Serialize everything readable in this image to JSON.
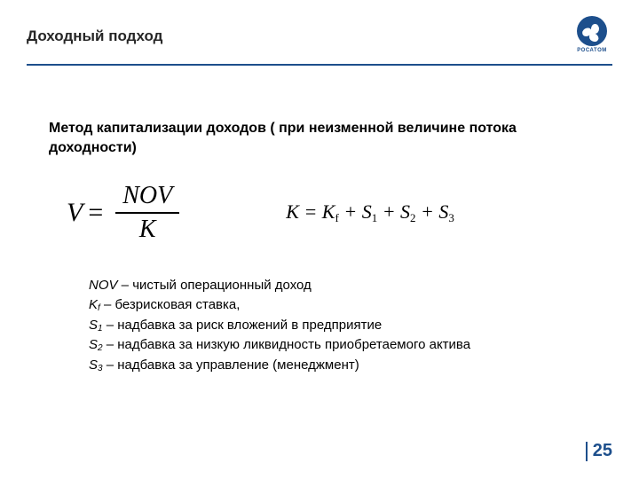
{
  "header": {
    "title": "Доходный подход",
    "logo_label": "РОСАТОМ",
    "brand_color": "#1d4f8c"
  },
  "method": {
    "title": "Метод капитализации доходов ( при неизменной величине потока доходности)"
  },
  "formula1": {
    "lhs": "V",
    "numerator": "NOV",
    "denominator": "K"
  },
  "formula2": {
    "text_parts": {
      "K": "K",
      "eq": " = ",
      "Kf": "K",
      "Kf_sub": "f",
      "plus": " + ",
      "S": "S",
      "s1": "1",
      "s2": "2",
      "s3": "3"
    }
  },
  "definitions": [
    {
      "term": "NOV",
      "sub": "",
      "desc": " – чистый операционный доход"
    },
    {
      "term": "K",
      "sub": "f",
      "desc": " – безрисковая ставка,"
    },
    {
      "term": "S",
      "sub": "1",
      "desc": " – надбавка за риск вложений в предприятие"
    },
    {
      "term": "S",
      "sub": "2",
      "desc": " – надбавка за низкую ликвидность приобретаемого актива"
    },
    {
      "term": "S",
      "sub": "3",
      "desc": " – надбавка за управление (менеджмент)"
    }
  ],
  "page_number": "25"
}
